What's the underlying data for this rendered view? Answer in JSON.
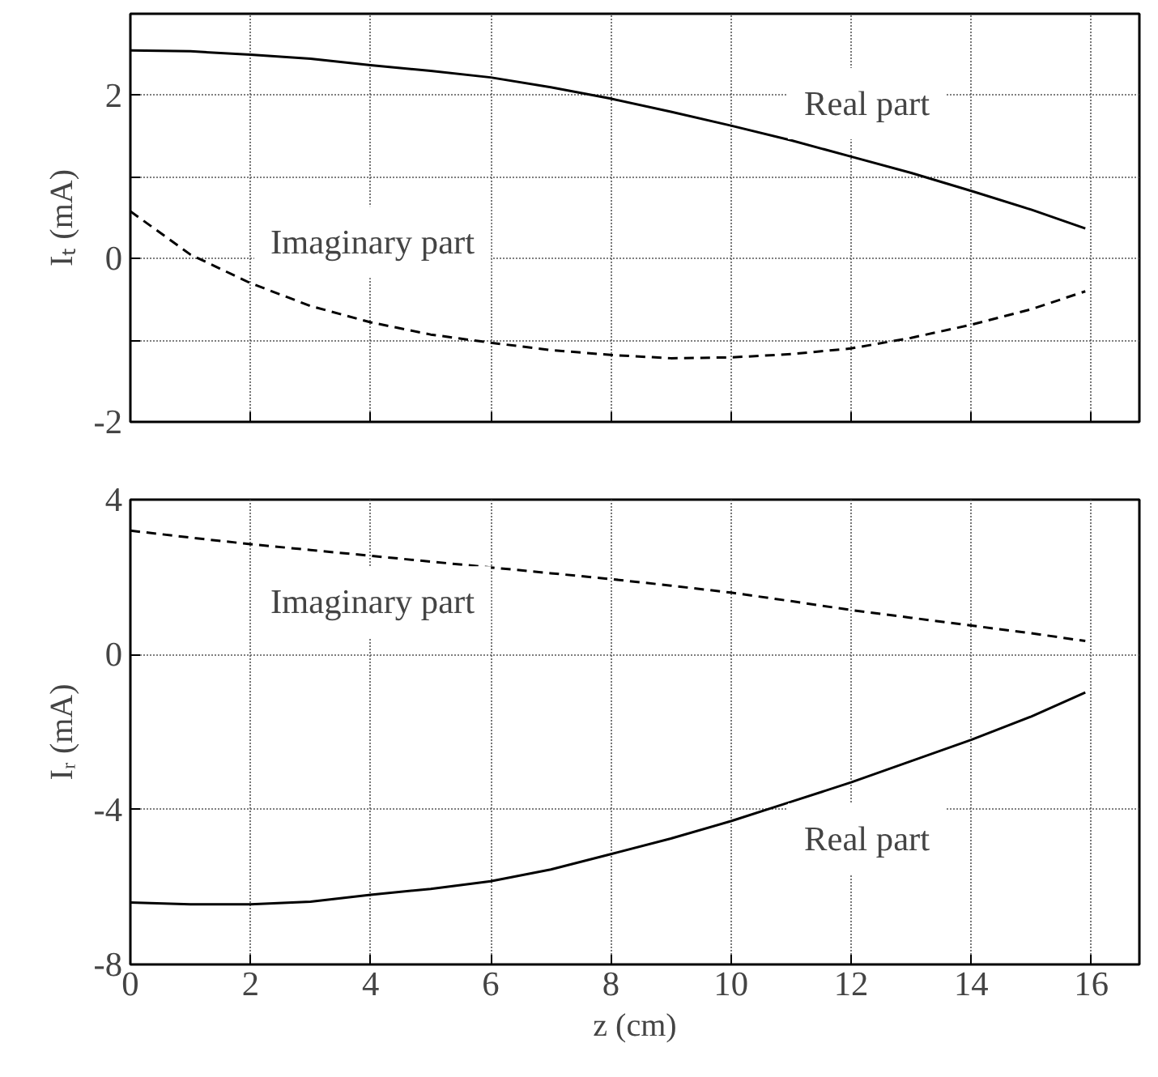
{
  "chart_data": [
    {
      "type": "line",
      "ylabel": "Iₜ (mA)",
      "xlim": [
        0,
        16.8
      ],
      "ylim": [
        -2,
        3
      ],
      "xticks": [
        0,
        2,
        4,
        6,
        8,
        10,
        12,
        14,
        16
      ],
      "yticks": [
        -2,
        {
          "value": -1,
          "label": null
        },
        0,
        {
          "value": 1,
          "label": null
        },
        2
      ],
      "grid": true,
      "tick_labels": "y",
      "x": [
        0,
        1,
        2,
        3,
        4,
        5,
        6,
        7,
        8,
        9,
        10,
        11,
        12,
        13,
        14,
        15,
        15.9
      ],
      "series": [
        {
          "name": "Real part",
          "color": "#000000",
          "line_style": "solid",
          "values": [
            2.55,
            2.54,
            2.5,
            2.45,
            2.37,
            2.3,
            2.22,
            2.1,
            1.96,
            1.8,
            1.63,
            1.45,
            1.25,
            1.05,
            0.83,
            0.6,
            0.37
          ]
        },
        {
          "name": "Imaginary part",
          "color": "#000000",
          "line_style": "dashed",
          "values": [
            0.58,
            0.05,
            -0.3,
            -0.58,
            -0.78,
            -0.93,
            -1.03,
            -1.12,
            -1.18,
            -1.22,
            -1.21,
            -1.17,
            -1.1,
            -0.97,
            -0.81,
            -0.62,
            -0.4
          ]
        }
      ]
    },
    {
      "type": "line",
      "xlabel": "z (cm)",
      "ylabel": "Iᵣ (mA)",
      "xlim": [
        0,
        16.8
      ],
      "ylim": [
        -8,
        4
      ],
      "xticks": [
        0,
        2,
        4,
        6,
        8,
        10,
        12,
        14,
        16
      ],
      "yticks": [
        -8,
        -4,
        0,
        4
      ],
      "grid": true,
      "x": [
        0,
        1,
        2,
        3,
        4,
        5,
        6,
        7,
        8,
        9,
        10,
        11,
        12,
        13,
        14,
        15,
        15.9
      ],
      "series": [
        {
          "name": "Imaginary part",
          "color": "#000000",
          "line_style": "dashed",
          "values": [
            3.2,
            3.02,
            2.85,
            2.7,
            2.55,
            2.4,
            2.25,
            2.1,
            1.95,
            1.78,
            1.6,
            1.38,
            1.15,
            0.95,
            0.75,
            0.55,
            0.35
          ]
        },
        {
          "name": "Real part",
          "color": "#000000",
          "line_style": "solid",
          "values": [
            -6.4,
            -6.45,
            -6.45,
            -6.38,
            -6.2,
            -6.05,
            -5.85,
            -5.55,
            -5.15,
            -4.75,
            -4.3,
            -3.8,
            -3.3,
            -2.75,
            -2.2,
            -1.6,
            -0.98
          ]
        }
      ]
    }
  ]
}
